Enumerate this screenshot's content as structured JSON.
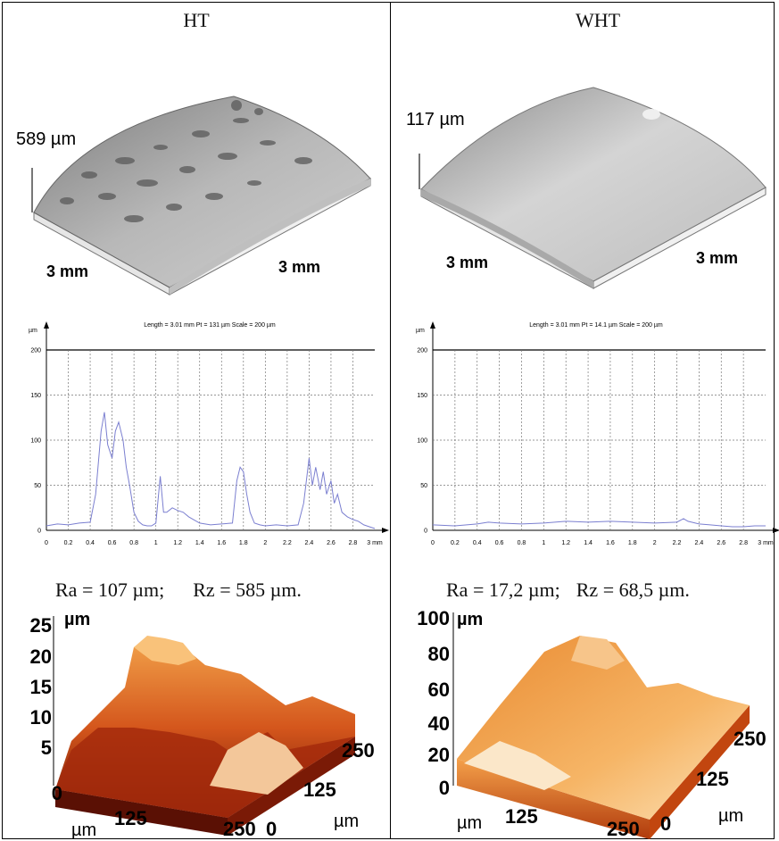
{
  "columns": {
    "ht": {
      "title": "HT",
      "height_label": "589 µm",
      "dim_left": "3 mm",
      "dim_right": "3 mm",
      "profile_header": "Length = 3.01 mm  Pt = 131 µm  Scale = 200 µm",
      "ra": "Ra = 107 µm;",
      "rz": "Rz = 585 µm.",
      "afm_unit": "µm",
      "afm_z_ticks": [
        "25",
        "20",
        "15",
        "10",
        "5",
        "0"
      ],
      "afm_x_unit": "µm",
      "afm_x_ticks": [
        "125",
        "250"
      ],
      "afm_y_ticks": [
        "250",
        "125",
        "0"
      ],
      "afm_y_unit": "µm"
    },
    "wht": {
      "title": "WHT",
      "height_label": "117 µm",
      "dim_left": "3 mm",
      "dim_right": "3 mm",
      "profile_header": "Length = 3.01 mm  Pt = 14.1 µm  Scale = 200 µm",
      "ra": "Ra = 17,2 µm;",
      "rz": "Rz = 68,5 µm.",
      "afm_unit": "µm",
      "afm_z_ticks": [
        "100",
        "80",
        "60",
        "40",
        "20",
        "0"
      ],
      "afm_x_unit": "µm",
      "afm_x_ticks": [
        "125",
        "250"
      ],
      "afm_y_ticks": [
        "250",
        "125",
        "0"
      ],
      "afm_y_unit": "µm"
    }
  },
  "chart_data": [
    {
      "type": "line",
      "panel": "HT profile",
      "title": "Length = 3.01 mm  Pt = 131 µm  Scale = 200 µm",
      "ylabel": "µm",
      "xlabel": "mm",
      "xlim": [
        0,
        3
      ],
      "ylim": [
        0,
        200
      ],
      "x_ticks": [
        "0",
        "0.2",
        "0.4",
        "0.6",
        "0.8",
        "1",
        "1.2",
        "1.4",
        "1.6",
        "1.8",
        "2",
        "2.2",
        "2.4",
        "2.6",
        "2.8",
        "3 mm"
      ],
      "y_ticks": [
        "0",
        "50",
        "100",
        "150",
        "200"
      ],
      "grid": true,
      "series": [
        {
          "color": "#7b7fd0",
          "x": [
            0,
            0.1,
            0.2,
            0.3,
            0.4,
            0.45,
            0.5,
            0.53,
            0.56,
            0.6,
            0.63,
            0.66,
            0.7,
            0.73,
            0.76,
            0.8,
            0.84,
            0.88,
            0.92,
            0.96,
            1.0,
            1.04,
            1.07,
            1.1,
            1.15,
            1.2,
            1.25,
            1.3,
            1.4,
            1.5,
            1.6,
            1.7,
            1.74,
            1.77,
            1.8,
            1.83,
            1.86,
            1.9,
            1.95,
            2.0,
            2.1,
            2.2,
            2.3,
            2.35,
            2.4,
            2.43,
            2.46,
            2.5,
            2.53,
            2.56,
            2.6,
            2.63,
            2.66,
            2.7,
            2.75,
            2.8,
            2.85,
            2.9,
            2.95,
            3.0
          ],
          "y": [
            5,
            7,
            6,
            8,
            9,
            40,
            110,
            131,
            95,
            80,
            110,
            120,
            100,
            70,
            50,
            20,
            10,
            6,
            5,
            5,
            8,
            60,
            20,
            20,
            25,
            22,
            20,
            15,
            8,
            6,
            7,
            8,
            55,
            70,
            65,
            40,
            20,
            8,
            6,
            5,
            6,
            5,
            6,
            30,
            80,
            50,
            70,
            45,
            65,
            40,
            55,
            30,
            40,
            20,
            15,
            12,
            10,
            6,
            4,
            2
          ]
        }
      ]
    },
    {
      "type": "line",
      "panel": "WHT profile",
      "title": "Length = 3.01 mm  Pt = 14.1 µm  Scale = 200 µm",
      "ylabel": "µm",
      "xlabel": "mm",
      "xlim": [
        0,
        3
      ],
      "ylim": [
        0,
        200
      ],
      "x_ticks": [
        "0",
        "0.2",
        "0.4",
        "0.6",
        "0.8",
        "1",
        "1.2",
        "1.4",
        "1.6",
        "1.8",
        "2",
        "2.2",
        "2.4",
        "2.6",
        "2.8",
        "3 mm"
      ],
      "y_ticks": [
        "0",
        "50",
        "100",
        "150",
        "200"
      ],
      "grid": true,
      "series": [
        {
          "color": "#7b7fd0",
          "x": [
            0,
            0.2,
            0.4,
            0.5,
            0.6,
            0.8,
            1.0,
            1.2,
            1.4,
            1.6,
            1.8,
            2.0,
            2.2,
            2.26,
            2.3,
            2.4,
            2.5,
            2.6,
            2.7,
            2.8,
            2.9,
            3.0
          ],
          "y": [
            6,
            5,
            7,
            9,
            8,
            7,
            8,
            10,
            9,
            10,
            9,
            8,
            9,
            13,
            10,
            7,
            6,
            5,
            4,
            4,
            5,
            5
          ]
        }
      ]
    }
  ]
}
